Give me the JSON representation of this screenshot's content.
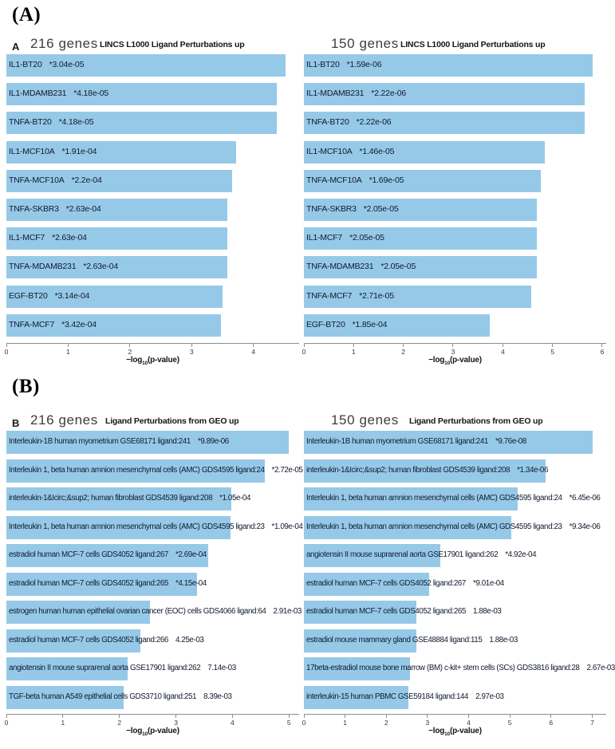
{
  "figure": {
    "panel_a": "(A)",
    "panel_b": "(B)"
  },
  "bar_color": "#96c9e8",
  "chart_data": [
    {
      "id": "A-216",
      "type": "bar",
      "orientation": "horizontal",
      "panel_letter": "A",
      "title": "216 genes",
      "subtitle": "LINCS L1000 Ligand Perturbations up",
      "xlabel": {
        "pre": "−log",
        "sub": "10",
        "post": "(p-value)"
      },
      "xlim": [
        0,
        4.74
      ],
      "ticks": [
        0,
        1,
        2,
        3,
        4
      ],
      "bar_color": "#96c9e8",
      "legend": "none",
      "grid": false,
      "bars": [
        {
          "label": "IL1-BT20",
          "pvalue": "*3.04e-05",
          "value": 4.52
        },
        {
          "label": "IL1-MDAMB231",
          "pvalue": "*4.18e-05",
          "value": 4.38
        },
        {
          "label": "TNFA-BT20",
          "pvalue": "*4.18e-05",
          "value": 4.38
        },
        {
          "label": "IL1-MCF10A",
          "pvalue": "*1.91e-04",
          "value": 3.72
        },
        {
          "label": "TNFA-MCF10A",
          "pvalue": "*2.2e-04",
          "value": 3.66
        },
        {
          "label": "TNFA-SKBR3",
          "pvalue": "*2.63e-04",
          "value": 3.58
        },
        {
          "label": "IL1-MCF7",
          "pvalue": "*2.63e-04",
          "value": 3.58
        },
        {
          "label": "TNFA-MDAMB231",
          "pvalue": "*2.63e-04",
          "value": 3.58
        },
        {
          "label": "EGF-BT20",
          "pvalue": "*3.14e-04",
          "value": 3.5
        },
        {
          "label": "TNFA-MCF7",
          "pvalue": "*3.42e-04",
          "value": 3.47
        }
      ]
    },
    {
      "id": "A-150",
      "type": "bar",
      "orientation": "horizontal",
      "panel_letter": "",
      "title": "150 genes",
      "subtitle": "LINCS L1000 Ligand Perturbations up",
      "xlabel": {
        "pre": "−log",
        "sub": "10",
        "post": "(p-value)"
      },
      "xlim": [
        0,
        6.08
      ],
      "ticks": [
        0,
        1,
        2,
        3,
        4,
        5,
        6
      ],
      "bar_color": "#96c9e8",
      "legend": "none",
      "grid": false,
      "bars": [
        {
          "label": "IL1-BT20",
          "pvalue": "*1.59e-06",
          "value": 5.8
        },
        {
          "label": "IL1-MDAMB231",
          "pvalue": "*2.22e-06",
          "value": 5.65
        },
        {
          "label": "TNFA-BT20",
          "pvalue": "*2.22e-06",
          "value": 5.65
        },
        {
          "label": "IL1-MCF10A",
          "pvalue": "*1.46e-05",
          "value": 4.84
        },
        {
          "label": "TNFA-MCF10A",
          "pvalue": "*1.69e-05",
          "value": 4.77
        },
        {
          "label": "TNFA-SKBR3",
          "pvalue": "*2.05e-05",
          "value": 4.69
        },
        {
          "label": "IL1-MCF7",
          "pvalue": "*2.05e-05",
          "value": 4.69
        },
        {
          "label": "TNFA-MDAMB231",
          "pvalue": "*2.05e-05",
          "value": 4.69
        },
        {
          "label": "TNFA-MCF7",
          "pvalue": "*2.71e-05",
          "value": 4.57
        },
        {
          "label": "EGF-BT20",
          "pvalue": "*1.85e-04",
          "value": 3.73
        }
      ]
    },
    {
      "id": "B-216",
      "type": "bar",
      "orientation": "horizontal",
      "panel_letter": "B",
      "title": "216 genes",
      "subtitle": "Ligand Perturbations from GEO up",
      "xlabel": {
        "pre": "−log",
        "sub": "10",
        "post": "(p-value)"
      },
      "xlim": [
        0,
        5.18
      ],
      "ticks": [
        0,
        1,
        2,
        3,
        4,
        5
      ],
      "bar_color": "#96c9e8",
      "legend": "none",
      "grid": false,
      "bars": [
        {
          "label": "Interleukin-1B human myometrium GSE68171 ligand:241",
          "pvalue": "*9.89e-06",
          "value": 5.0
        },
        {
          "label": "Interleukin 1, beta human amnion mesenchymal cells (AMC) GDS4595 ligand:24",
          "pvalue": "*2.72e-05",
          "value": 4.57
        },
        {
          "label": "interleukin-1&Icirc;&sup2; human fibroblast GDS4539 ligand:208",
          "pvalue": "*1.05e-04",
          "value": 3.98
        },
        {
          "label": "Interleukin 1, beta human amnion mesenchymal cells (AMC) GDS4595 ligand:23",
          "pvalue": "*1.09e-04",
          "value": 3.96
        },
        {
          "label": "estradiol human MCF-7 cells GDS4052 ligand:267",
          "pvalue": "*2.69e-04",
          "value": 3.57
        },
        {
          "label": "estradiol human MCF-7 cells GDS4052 ligand:265",
          "pvalue": "*4.15e-04",
          "value": 3.38
        },
        {
          "label": "estrogen human human epithelial ovarian cancer (EOC) cells GDS4066 ligand:64",
          "pvalue": "2.91e-03",
          "value": 2.54
        },
        {
          "label": "estradiol human MCF-7 cells GDS4052 ligand:266",
          "pvalue": "4.25e-03",
          "value": 2.37
        },
        {
          "label": "angiotensin II mouse suprarenal aorta GSE17901 ligand:262",
          "pvalue": "7.14e-03",
          "value": 2.15
        },
        {
          "label": "TGF-beta human A549 epithelial cells GDS3710 ligand:251",
          "pvalue": "8.39e-03",
          "value": 2.08
        }
      ]
    },
    {
      "id": "B-150",
      "type": "bar",
      "orientation": "horizontal",
      "panel_letter": "",
      "title": "150 genes",
      "subtitle": "Ligand Perturbations from GEO up",
      "xlabel": {
        "pre": "−log",
        "sub": "10",
        "post": "(p-value)"
      },
      "xlim": [
        0,
        7.34
      ],
      "ticks": [
        0,
        1,
        2,
        3,
        4,
        5,
        6,
        7
      ],
      "bar_color": "#96c9e8",
      "legend": "none",
      "grid": false,
      "bars": [
        {
          "label": "Interleukin-1B human myometrium GSE68171 ligand:241",
          "pvalue": "*9.76e-08",
          "value": 7.01
        },
        {
          "label": "interleukin-1&Icirc;&sup2; human fibroblast GDS4539 ligand:208",
          "pvalue": "*1.34e-06",
          "value": 5.87
        },
        {
          "label": "Interleukin 1, beta human amnion mesenchymal cells (AMC) GDS4595 ligand:24",
          "pvalue": "*6.45e-06",
          "value": 5.19
        },
        {
          "label": "Interleukin 1, beta human amnion mesenchymal cells (AMC) GDS4595 ligand:23",
          "pvalue": "*9.34e-06",
          "value": 5.03
        },
        {
          "label": "angiotensin II mouse suprarenal aorta GSE17901 ligand:262",
          "pvalue": "*4.92e-04",
          "value": 3.31
        },
        {
          "label": "estradiol human MCF-7 cells GDS4052 ligand:267",
          "pvalue": "*9.01e-04",
          "value": 3.05
        },
        {
          "label": "estradiol human MCF-7 cells GDS4052 ligand:265",
          "pvalue": "1.88e-03",
          "value": 2.73
        },
        {
          "label": "estradiol mouse mammary gland GSE48884 ligand:115",
          "pvalue": "1.88e-03",
          "value": 2.73
        },
        {
          "label": "17beta-estradiol mouse bone marrow (BM) c-kit+ stem cells (SCs) GDS3816 ligand:28",
          "pvalue": "2.67e-03",
          "value": 2.57
        },
        {
          "label": "interleukin-15 human PBMC GSE59184 ligand:144",
          "pvalue": "2.97e-03",
          "value": 2.53
        }
      ]
    }
  ]
}
